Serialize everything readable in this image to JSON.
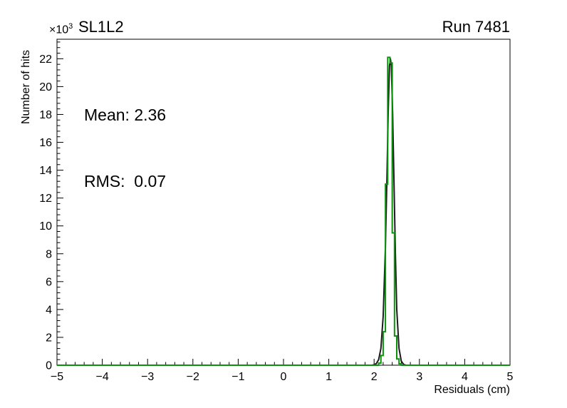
{
  "window": {
    "background": "#ffffff",
    "frame_color": "#000000"
  },
  "chart_data": {
    "type": "histogram",
    "title": "SL1L2",
    "corner_label": "Run 7481",
    "xlabel": "Residuals (cm)",
    "ylabel": "Number of hits",
    "y_multiplier": {
      "base": "×10",
      "exp": "3"
    },
    "xlim": [
      -5,
      5
    ],
    "ylim": [
      0,
      23400
    ],
    "grid": false,
    "legend": "none",
    "x_minor_divisions": 5,
    "y_minor_divisions": 5,
    "x_ticks": [
      {
        "v": -5,
        "label": "−5"
      },
      {
        "v": -4,
        "label": "−4"
      },
      {
        "v": -3,
        "label": "−3"
      },
      {
        "v": -2,
        "label": "−2"
      },
      {
        "v": -1,
        "label": "−1"
      },
      {
        "v": 0,
        "label": "0"
      },
      {
        "v": 1,
        "label": "1"
      },
      {
        "v": 2,
        "label": "2"
      },
      {
        "v": 3,
        "label": "3"
      },
      {
        "v": 4,
        "label": "4"
      },
      {
        "v": 5,
        "label": "5"
      }
    ],
    "y_ticks": [
      {
        "v": 0,
        "label": "0"
      },
      {
        "v": 2000,
        "label": "2"
      },
      {
        "v": 4000,
        "label": "4"
      },
      {
        "v": 6000,
        "label": "6"
      },
      {
        "v": 8000,
        "label": "8"
      },
      {
        "v": 10000,
        "label": "10"
      },
      {
        "v": 12000,
        "label": "12"
      },
      {
        "v": 14000,
        "label": "14"
      },
      {
        "v": 16000,
        "label": "16"
      },
      {
        "v": 18000,
        "label": "18"
      },
      {
        "v": 20000,
        "label": "20"
      },
      {
        "v": 22000,
        "label": "22"
      }
    ],
    "annotations": [
      {
        "name": "mean",
        "text": "Mean: 2.36"
      },
      {
        "name": "rms",
        "text": "RMS:  0.07"
      }
    ],
    "stats": {
      "mean": 2.36,
      "rms": 0.07
    },
    "series": [
      {
        "name": "fitted-distribution-curve",
        "type": "curve",
        "color": "#1b1b1b",
        "points": [
          [
            1.95,
            0
          ],
          [
            2.0,
            30
          ],
          [
            2.05,
            120
          ],
          [
            2.1,
            400
          ],
          [
            2.15,
            1200
          ],
          [
            2.2,
            3500
          ],
          [
            2.25,
            8500
          ],
          [
            2.28,
            13000
          ],
          [
            2.31,
            18000
          ],
          [
            2.34,
            21500
          ],
          [
            2.36,
            22000
          ],
          [
            2.38,
            21500
          ],
          [
            2.41,
            18000
          ],
          [
            2.44,
            13000
          ],
          [
            2.47,
            8000
          ],
          [
            2.5,
            4000
          ],
          [
            2.55,
            1200
          ],
          [
            2.6,
            300
          ],
          [
            2.65,
            60
          ],
          [
            2.7,
            0
          ]
        ]
      },
      {
        "name": "residuals-histogram",
        "type": "steps",
        "color": "#0a930a",
        "first_bin_x": 2.1,
        "bin_width": 0.05,
        "values": [
          150,
          700,
          2400,
          13000,
          22100,
          21700,
          9500,
          2100,
          450,
          100
        ]
      }
    ]
  }
}
